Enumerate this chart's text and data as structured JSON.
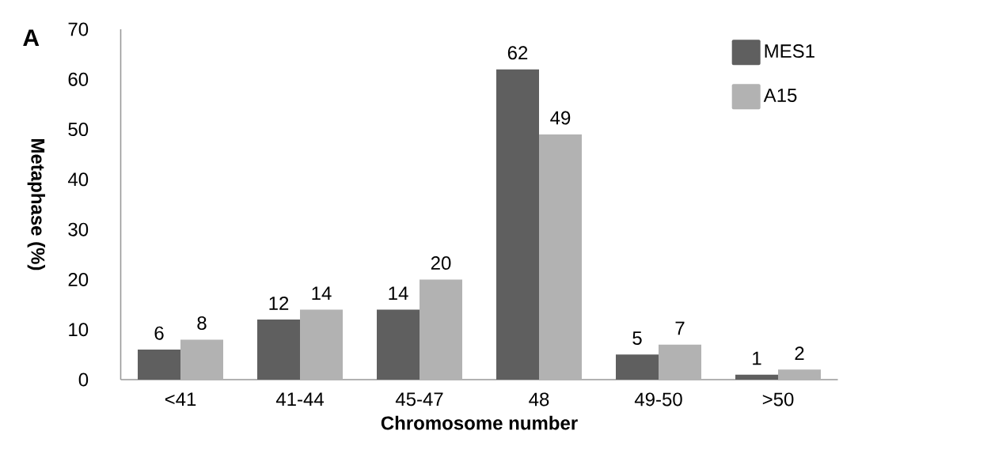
{
  "chart_data": {
    "type": "bar",
    "xlabel": "Chromosome number",
    "ylabel": "Metaphase (%)",
    "annotations": [
      "A"
    ],
    "categories": [
      "<41",
      "41-44",
      "45-47",
      "48",
      "49-50",
      ">50"
    ],
    "series": [
      {
        "name": "MES1",
        "color": "#5f5f5f",
        "values": [
          6,
          12,
          14,
          62,
          5,
          1
        ]
      },
      {
        "name": "A15",
        "color": "#b2b2b2",
        "values": [
          8,
          14,
          20,
          49,
          7,
          2
        ]
      }
    ],
    "ylim": [
      0,
      70
    ],
    "yticks": [
      0,
      10,
      20,
      30,
      40,
      50,
      60,
      70
    ],
    "data_labels": true,
    "legend": "top right",
    "grid": false
  }
}
